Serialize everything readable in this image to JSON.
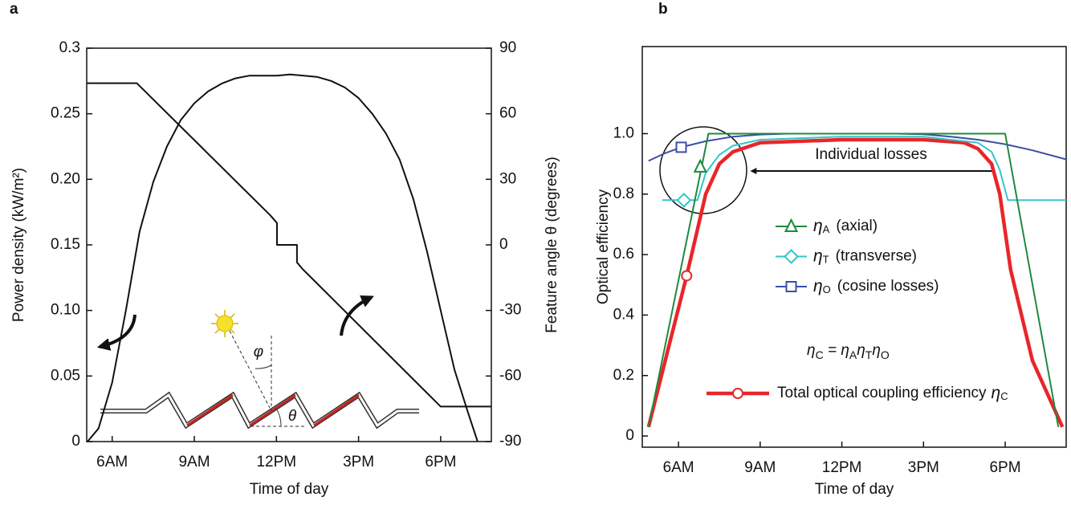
{
  "chart_data": [
    {
      "type": "line",
      "panel_label": "a",
      "xlabel": "Time of day",
      "ylabel": "Power density (kW/m²)",
      "y2label": "Feature angle θ (degrees)",
      "diagram_labels": [
        "φ",
        "θ"
      ],
      "xlim": [
        5.07,
        19.85
      ],
      "xticks": [
        {
          "value": 6,
          "label": "6AM"
        },
        {
          "value": 9,
          "label": "9AM"
        },
        {
          "value": 12,
          "label": "12PM"
        },
        {
          "value": 15,
          "label": "3PM"
        },
        {
          "value": 18,
          "label": "6PM"
        }
      ],
      "ylim": [
        0,
        0.3
      ],
      "yticks": [
        0,
        0.05,
        {
          "value": 0.1,
          "label": "0.10"
        },
        0.15,
        {
          "value": 0.2,
          "label": "0.20"
        },
        0.25,
        0.3
      ],
      "y2lim": [
        -90,
        90
      ],
      "y2ticks": [
        -90,
        -60,
        -30,
        0,
        30,
        60,
        90
      ],
      "series": [
        {
          "color": "#111111",
          "line_width": 2,
          "x": [
            5.1,
            5.5,
            6,
            6.5,
            7,
            7.5,
            8,
            8.5,
            9,
            9.5,
            10,
            10.5,
            11,
            11.5,
            12,
            12.5,
            13,
            13.5,
            14,
            14.5,
            15,
            15.5,
            16,
            16.5,
            17,
            17.5,
            18,
            18.5,
            19,
            19.35
          ],
          "values": [
            0,
            0.01,
            0.045,
            0.1,
            0.16,
            0.198,
            0.225,
            0.245,
            0.258,
            0.267,
            0.273,
            0.277,
            0.279,
            0.279,
            0.279,
            0.28,
            0.279,
            0.278,
            0.275,
            0.27,
            0.262,
            0.25,
            0.235,
            0.215,
            0.185,
            0.145,
            0.1,
            0.055,
            0.022,
            0
          ]
        },
        {
          "color": "#111111",
          "line_width": 2,
          "axis": "y2",
          "x": [
            5.07,
            6.9,
            11.78,
            12.02,
            12.02,
            12.75,
            12.75,
            12.95,
            18.0,
            19.85
          ],
          "values": [
            74,
            74,
            13.5,
            10,
            0,
            0,
            -8,
            -11,
            -74,
            -74
          ]
        }
      ]
    },
    {
      "type": "line",
      "panel_label": "b",
      "xlabel": "Time of day",
      "ylabel": "Optical efficiency",
      "annotation": "Individual losses",
      "equation": [
        "η",
        "C",
        " = η",
        "A",
        "η",
        "T",
        "η",
        "O"
      ],
      "xlim": [
        4.67,
        20.24
      ],
      "xticks": [
        {
          "value": 6,
          "label": "6AM"
        },
        {
          "value": 9,
          "label": "9AM"
        },
        {
          "value": 12,
          "label": "12PM"
        },
        {
          "value": 15,
          "label": "3PM"
        },
        {
          "value": 18,
          "label": "6PM"
        }
      ],
      "ylim": [
        -0.037,
        1.288
      ],
      "yticks": [
        0,
        0.2,
        0.4,
        0.6,
        0.8,
        {
          "value": 1,
          "label": "1.0"
        }
      ],
      "series": [
        {
          "symbol": "η",
          "subscript": "A",
          "name": "(axial)",
          "color": "#1e8a3e",
          "line_width": 2,
          "marker": "triangle",
          "marker_point": [
            6.8,
            0.89
          ],
          "x": [
            4.9,
            7.1,
            18.0,
            19.95
          ],
          "values": [
            0.03,
            1.0,
            1.0,
            0.03
          ]
        },
        {
          "symbol": "η",
          "subscript": "T",
          "name": "(transverse)",
          "color": "#33c6c8",
          "line_width": 2,
          "marker": "diamond",
          "marker_point": [
            6.2,
            0.78
          ],
          "x": [
            5.4,
            6.7,
            7.0,
            7.5,
            8,
            9,
            12,
            15,
            17,
            17.5,
            17.8,
            18.1,
            20.24
          ],
          "values": [
            0.78,
            0.78,
            0.87,
            0.93,
            0.96,
            0.98,
            0.99,
            0.99,
            0.97,
            0.94,
            0.88,
            0.78,
            0.78
          ]
        },
        {
          "symbol": "η",
          "subscript": "O",
          "name": "(cosine losses)",
          "color": "#3b4fa6",
          "line_width": 2,
          "marker": "square",
          "marker_point": [
            6.1,
            0.955
          ],
          "x": [
            4.9,
            5.5,
            6.1,
            7,
            8,
            9,
            10,
            12,
            14,
            15,
            16,
            17,
            18,
            19,
            20.24
          ],
          "values": [
            0.91,
            0.935,
            0.955,
            0.975,
            0.99,
            0.997,
            1.0,
            1.0,
            1.0,
            0.998,
            0.99,
            0.98,
            0.965,
            0.945,
            0.915
          ]
        },
        {
          "symbol": "η",
          "subscript": "C",
          "name": "Total optical coupling efficiency",
          "color": "#e8262a",
          "line_width": 4.5,
          "marker": "circle",
          "marker_point": [
            6.3,
            0.53
          ],
          "x": [
            4.9,
            5.6,
            6.3,
            7,
            7.5,
            8,
            9,
            12,
            15,
            16.5,
            17,
            17.5,
            17.8,
            18.2,
            19,
            20.1
          ],
          "values": [
            0.03,
            0.28,
            0.53,
            0.8,
            0.9,
            0.94,
            0.97,
            0.98,
            0.98,
            0.97,
            0.95,
            0.9,
            0.8,
            0.55,
            0.25,
            0.03
          ]
        }
      ]
    }
  ]
}
